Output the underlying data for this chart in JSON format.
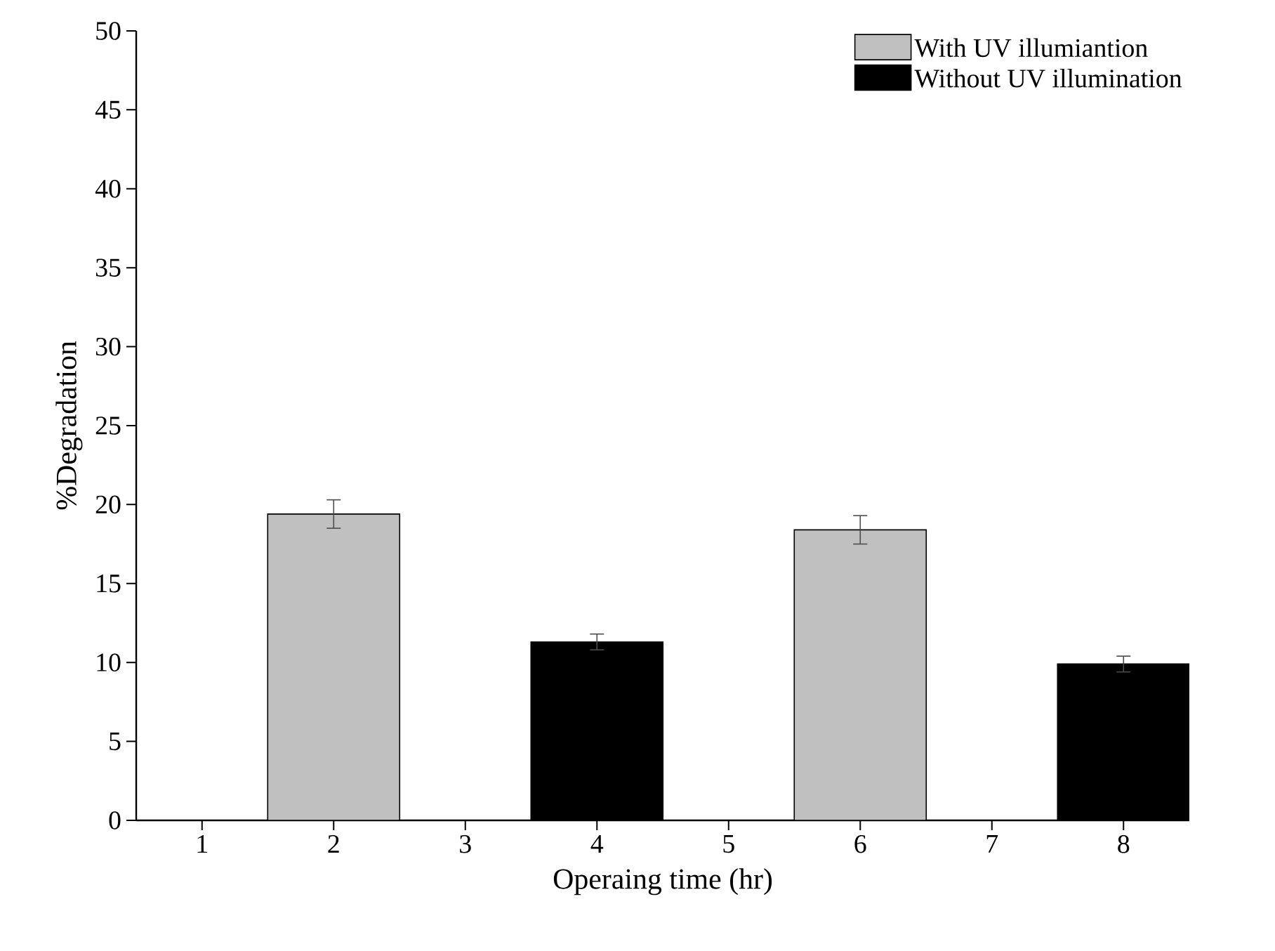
{
  "chart_data": {
    "type": "bar",
    "xlabel": "Operaing time (hr)",
    "ylabel": "%Degradation",
    "xlim": [
      0.5,
      8.5
    ],
    "xticks": [
      1,
      2,
      3,
      4,
      5,
      6,
      7,
      8
    ],
    "ylim": [
      0,
      50
    ],
    "yticks": [
      0,
      5,
      10,
      15,
      20,
      25,
      30,
      35,
      40,
      45,
      50
    ],
    "legend": "top right",
    "grid": false,
    "series": [
      {
        "name": "With UV illumiantion",
        "color": "#c0c0c0",
        "x": [
          2,
          6
        ],
        "values": [
          19.4,
          18.4
        ],
        "errors": [
          0.9,
          0.9
        ]
      },
      {
        "name": "Without UV illumination",
        "color": "#000000",
        "x": [
          4,
          8
        ],
        "values": [
          11.3,
          9.9
        ],
        "errors": [
          0.5,
          0.5
        ]
      }
    ]
  }
}
